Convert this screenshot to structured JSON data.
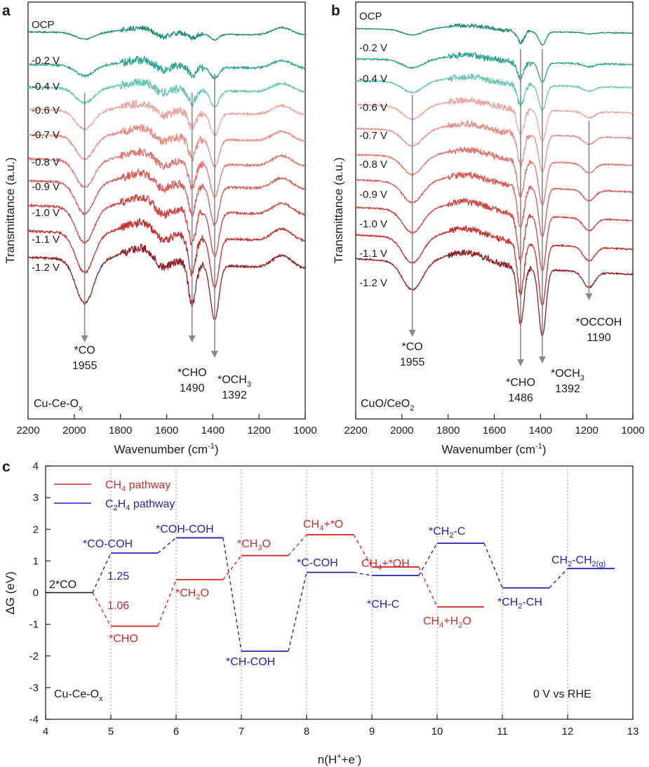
{
  "chart_data": [
    {
      "panel": "a",
      "type": "line",
      "xlabel": "Wavenumber (cm",
      "xlabel_sup": "-1",
      "xlabel_end": ")",
      "ylabel": "Transmittance (a.u.)",
      "xlim": [
        2200,
        1000
      ],
      "xticks": [
        "2200",
        "2000",
        "1800",
        "1600",
        "1400",
        "1200",
        "1000"
      ],
      "sample": {
        "base": "Cu-Ce-O",
        "sub": "x"
      },
      "series": [
        {
          "name": "OCP",
          "color": "#1c8a72"
        },
        {
          "name": "-0.2 V",
          "color": "#2aa58c"
        },
        {
          "name": "-0.4 V",
          "color": "#66c4b3"
        },
        {
          "name": "-0.6 V",
          "color": "#e9a6a2"
        },
        {
          "name": "-0.7 V",
          "color": "#e48e89"
        },
        {
          "name": "-0.8 V",
          "color": "#dd7470"
        },
        {
          "name": "-0.9 V",
          "color": "#d75a57"
        },
        {
          "name": "-1.0 V",
          "color": "#cf4340"
        },
        {
          "name": "-1.1 V",
          "color": "#c42d2a"
        },
        {
          "name": "-1.2 V",
          "color": "#8e1c22"
        }
      ],
      "peaks": [
        {
          "label": "*CO",
          "sub": "",
          "value": 1955
        },
        {
          "label": "*CHO",
          "sub": "",
          "value": 1490
        },
        {
          "label": "*OCH",
          "sub": "3",
          "value": 1392
        }
      ]
    },
    {
      "panel": "b",
      "type": "line",
      "xlabel": "Wavenumber (cm",
      "xlabel_sup": "-1",
      "xlabel_end": ")",
      "ylabel": "Transmittance (a.u.)",
      "xlim": [
        2200,
        1000
      ],
      "xticks": [
        "2200",
        "2000",
        "1800",
        "1600",
        "1400",
        "1200",
        "1000"
      ],
      "sample": {
        "base": "CuO/CeO",
        "sub": "2"
      },
      "series": [
        {
          "name": "OCP",
          "color": "#1c8a72"
        },
        {
          "name": "-0.2 V",
          "color": "#2aa58c"
        },
        {
          "name": "-0.4 V",
          "color": "#66c4b3"
        },
        {
          "name": "-0.6 V",
          "color": "#e9a6a2"
        },
        {
          "name": "-0.7 V",
          "color": "#e48e89"
        },
        {
          "name": "-0.8 V",
          "color": "#dd7470"
        },
        {
          "name": "-0.9 V",
          "color": "#d75a57"
        },
        {
          "name": "-1.0 V",
          "color": "#cf4340"
        },
        {
          "name": "-1.1 V",
          "color": "#c42d2a"
        },
        {
          "name": "-1.2 V",
          "color": "#8e1c22"
        }
      ],
      "peaks": [
        {
          "label": "*CO",
          "sub": "",
          "value": 1955
        },
        {
          "label": "*CHO",
          "sub": "",
          "value": 1486
        },
        {
          "label": "*OCH",
          "sub": "3",
          "value": 1392
        },
        {
          "label": "*OCCOH",
          "sub": "",
          "value": 1190
        }
      ]
    },
    {
      "panel": "c",
      "type": "line",
      "xlabel": "n(H",
      "xlabel_sup1": "+",
      "xlabel_mid": "+e",
      "xlabel_sup2": "-",
      "xlabel_end": ")",
      "ylabel": "ΔG (eV)",
      "xlim": [
        4,
        13
      ],
      "ylim": [
        -4,
        4
      ],
      "xticks": [
        4,
        5,
        6,
        7,
        8,
        9,
        10,
        11,
        12,
        13
      ],
      "yticks": [
        4,
        3,
        2,
        1,
        0,
        -1,
        -2,
        -3,
        -4
      ],
      "legend": [
        {
          "pre": "CH",
          "sub": "4",
          "post": " pathway",
          "color": "#d42a2a"
        },
        {
          "pre": "C",
          "sub": "2",
          "mid": "H",
          "sub2": "4",
          "post": " pathway",
          "color": "#2323b8"
        }
      ],
      "corner_left": {
        "base": "Cu-Ce-O",
        "sub": "x"
      },
      "corner_right": "0 V vs RHE",
      "start": {
        "label": "2*CO",
        "x": 4,
        "y": 0
      },
      "ch4_levels": [
        {
          "x": 5,
          "y": -1.06
        },
        {
          "x": 6,
          "y": 0.41
        },
        {
          "x": 7,
          "y": 1.17
        },
        {
          "x": 8,
          "y": 1.83
        },
        {
          "x": 9,
          "y": 0.81
        },
        {
          "x": 10,
          "y": -0.45
        }
      ],
      "c2h4_levels": [
        {
          "x": 5,
          "y": 1.25
        },
        {
          "x": 6,
          "y": 1.73
        },
        {
          "x": 7,
          "y": -1.85
        },
        {
          "x": 8,
          "y": 0.64
        },
        {
          "x": 9,
          "y": 0.54
        },
        {
          "x": 10,
          "y": 1.56
        },
        {
          "x": 11,
          "y": 0.15
        },
        {
          "x": 12,
          "y": 0.76
        }
      ],
      "labels": {
        "co_coh": "*CO-COH",
        "coh_coh": "*COH-COH",
        "ch_coh": "*CH-COH",
        "c_coh": "*C-COH",
        "ch_c": "*CH-C",
        "ch2_c": {
          "pre": "*CH",
          "sub": "2",
          "post": "-C"
        },
        "ch2_ch": {
          "pre": "*CH",
          "sub": "2",
          "post": "-CH"
        },
        "ch2_ch2g": {
          "pre": "CH",
          "sub": "2",
          "mid": "-CH",
          "sub2": "2(g)"
        },
        "cho": "*CHO",
        "ch2o": {
          "pre": "*CH",
          "sub": "2",
          "post": "O"
        },
        "ch3o": {
          "pre": "*CH",
          "sub": "3",
          "post": "O"
        },
        "ch4_o": {
          "pre": "CH",
          "sub": "4",
          "post": "+*O"
        },
        "ch4_oh": {
          "pre": "CH",
          "sub": "4",
          "post": "+*OH"
        },
        "ch4_h2o": {
          "pre": "CH",
          "sub": "4",
          "mid": "+H",
          "sub2": "2",
          "post": "O"
        },
        "val_c2": "1.25",
        "val_ch4": "1.06"
      }
    }
  ]
}
